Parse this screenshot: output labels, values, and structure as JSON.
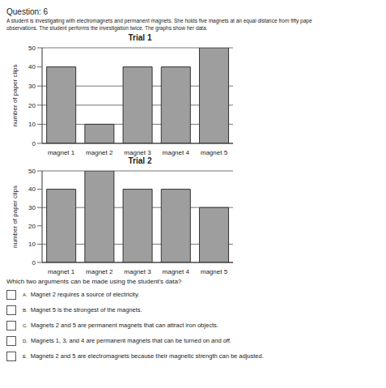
{
  "header": {
    "title": "Question: 6"
  },
  "intro": [
    "A student is investigating with electromagnets and permanent magnets. She holds five magnets at an equal distance from fifty pape",
    "observations. The student performs the investigation twice. The graphs show her data."
  ],
  "chart_data": [
    {
      "type": "bar",
      "title": "Trial 1",
      "ylabel": "number of paper clips",
      "categories": [
        "magnet 1",
        "magnet 2",
        "magnet 3",
        "magnet 4",
        "magnet 5"
      ],
      "values": [
        40,
        10,
        40,
        40,
        50
      ],
      "color": "#9e9e9e",
      "ylim": [
        0,
        50
      ],
      "yticks": [
        0,
        10,
        20,
        30,
        40,
        50
      ],
      "grid": true
    },
    {
      "type": "bar",
      "title": "Trial 2",
      "ylabel": "number of paper clips",
      "categories": [
        "magnet 1",
        "magnet 2",
        "magnet 3",
        "magnet 4",
        "magnet 5"
      ],
      "values": [
        40,
        50,
        40,
        40,
        30
      ],
      "color": "#9e9e9e",
      "ylim": [
        0,
        50
      ],
      "yticks": [
        0,
        10,
        20,
        30,
        40,
        50
      ],
      "grid": true
    }
  ],
  "question": "Which two arguments can be made using the student's data?",
  "options": [
    {
      "letter": "A.",
      "text": "Magnet 2 requires a source of electricity."
    },
    {
      "letter": "B.",
      "text": "Magnet 5 is the strongest of the magnets."
    },
    {
      "letter": "C.",
      "text": "Magnets 2 and 5 are permanent magnets that can attract iron objects."
    },
    {
      "letter": "D.",
      "text": "Magnets 1, 3, and 4 are permanent magnets that can be turned on and off."
    },
    {
      "letter": "E.",
      "text": "Magnets 2 and 5 are electromagnets because their magnetic strength can be adjusted."
    }
  ]
}
